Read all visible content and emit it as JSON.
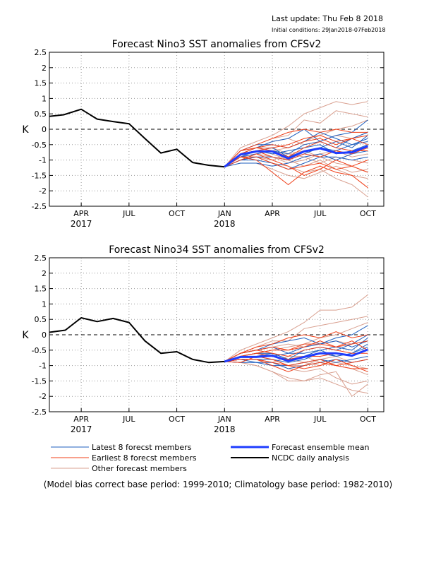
{
  "header": {
    "last_update": "Last update: Thu Feb 8 2018",
    "initial_conditions": "Initial conditions: 29Jan2018-07Feb2018"
  },
  "colors": {
    "latest": "#1f5fbf",
    "earliest": "#f0401a",
    "other": "#d9a090",
    "mean": "#1e3cff",
    "analysis": "#000000"
  },
  "chart_data": [
    {
      "type": "line",
      "title": "Forecast Nino3 SST anomalies from CFSv2",
      "ylabel": "K",
      "ylim": [
        -2.5,
        2.5
      ],
      "yticks": [
        "2.5",
        "2",
        "1.5",
        "1",
        "0.5",
        "0",
        "-0.5",
        "-1",
        "-1.5",
        "-2",
        "-2.5"
      ],
      "xlim": [
        0,
        21
      ],
      "xticks": [
        {
          "x": 2,
          "label": "APR",
          "year": "2017"
        },
        {
          "x": 5,
          "label": "JUL",
          "year": ""
        },
        {
          "x": 8,
          "label": "OCT",
          "year": ""
        },
        {
          "x": 11,
          "label": "JAN",
          "year": "2018"
        },
        {
          "x": 14,
          "label": "APR",
          "year": ""
        },
        {
          "x": 17,
          "label": "JUL",
          "year": ""
        },
        {
          "x": 20,
          "label": "OCT",
          "year": ""
        }
      ],
      "grid": true,
      "zero_line": true,
      "series": [
        {
          "role": "analysis",
          "x": [
            0,
            0.9,
            2,
            3,
            4,
            5,
            6,
            7,
            8,
            9,
            10,
            11
          ],
          "y": [
            0.42,
            0.47,
            0.65,
            0.33,
            0.25,
            0.18,
            -0.3,
            -0.77,
            -0.65,
            -1.08,
            -1.17,
            -1.22
          ]
        },
        {
          "role": "mean",
          "x": [
            11,
            12,
            13,
            14,
            15,
            16,
            17,
            18,
            19,
            20
          ],
          "y": [
            -1.22,
            -0.82,
            -0.72,
            -0.72,
            -0.95,
            -0.72,
            -0.62,
            -0.77,
            -0.75,
            -0.55
          ]
        }
      ],
      "ensemble": {
        "start": [
          11,
          -1.22
        ],
        "x": [
          12,
          13,
          14,
          15,
          16,
          17,
          18,
          19,
          20
        ],
        "latest": [
          [
            -0.8,
            -0.6,
            -0.4,
            -0.3,
            0.0,
            -0.4,
            -0.2,
            -0.1,
            0.3
          ],
          [
            -0.9,
            -0.8,
            -0.7,
            -0.8,
            -0.5,
            -0.4,
            -0.6,
            -0.3,
            -0.1
          ],
          [
            -1.0,
            -0.9,
            -0.9,
            -1.0,
            -0.8,
            -0.6,
            -0.7,
            -0.5,
            -0.3
          ],
          [
            -0.7,
            -0.5,
            -0.5,
            -0.6,
            -0.4,
            -0.1,
            -0.3,
            -0.5,
            -0.4
          ],
          [
            -1.1,
            -1.1,
            -1.2,
            -1.1,
            -0.9,
            -0.8,
            -1.0,
            -0.8,
            -0.7
          ],
          [
            -0.9,
            -0.7,
            -0.6,
            -0.9,
            -0.7,
            -0.6,
            -0.4,
            -0.6,
            -0.2
          ],
          [
            -1.0,
            -1.0,
            -1.1,
            -1.3,
            -1.1,
            -0.9,
            -0.9,
            -1.0,
            -0.9
          ],
          [
            -0.8,
            -0.7,
            -0.8,
            -0.7,
            -0.6,
            -0.5,
            -0.8,
            -0.7,
            -0.5
          ]
        ],
        "earliest": [
          [
            -0.7,
            -0.5,
            -0.3,
            -0.1,
            0.0,
            -0.1,
            0.0,
            -0.1,
            -0.1
          ],
          [
            -0.8,
            -0.7,
            -0.6,
            -0.5,
            -0.3,
            -0.2,
            -0.4,
            -0.3,
            -0.5
          ],
          [
            -0.9,
            -1.0,
            -1.4,
            -1.8,
            -1.4,
            -1.2,
            -1.4,
            -1.5,
            -1.9
          ],
          [
            -0.8,
            -0.6,
            -0.7,
            -0.9,
            -0.6,
            -0.4,
            -0.6,
            -0.7,
            -0.7
          ],
          [
            -1.0,
            -0.8,
            -1.0,
            -1.2,
            -1.5,
            -1.3,
            -1.0,
            -1.2,
            -1.4
          ],
          [
            -0.7,
            -0.6,
            -0.5,
            -0.6,
            -0.4,
            -0.3,
            -0.5,
            -0.3,
            -0.2
          ],
          [
            -0.9,
            -0.9,
            -1.1,
            -1.3,
            -1.2,
            -1.1,
            -1.3,
            -1.2,
            -1.0
          ],
          [
            -0.8,
            -0.7,
            -0.9,
            -1.0,
            -0.8,
            -0.9,
            -0.7,
            -0.8,
            -0.6
          ]
        ],
        "other": [
          [
            -0.6,
            -0.4,
            -0.2,
            0.1,
            0.5,
            0.7,
            0.9,
            0.8,
            0.9
          ],
          [
            -0.7,
            -0.5,
            -0.3,
            -0.2,
            0.3,
            0.2,
            0.6,
            0.5,
            0.4
          ],
          [
            -1.0,
            -0.9,
            -1.1,
            -1.2,
            -1.4,
            -1.3,
            -1.6,
            -1.8,
            -2.2
          ],
          [
            -0.8,
            -0.7,
            -0.8,
            -1.0,
            -1.2,
            -1.0,
            -1.3,
            -1.5,
            -1.6
          ],
          [
            -0.9,
            -0.8,
            -0.7,
            -0.6,
            -0.4,
            -0.2,
            0.0,
            0.1,
            0.3
          ],
          [
            -1.1,
            -1.1,
            -1.3,
            -1.5,
            -1.6,
            -1.4,
            -1.2,
            -1.4,
            -1.3
          ],
          [
            -0.8,
            -0.6,
            -0.6,
            -0.8,
            -0.9,
            -1.1,
            -0.9,
            -1.0,
            -1.1
          ],
          [
            -0.7,
            -0.6,
            -0.4,
            -0.3,
            -0.5,
            -0.4,
            -0.2,
            -0.3,
            -0.1
          ],
          [
            -0.9,
            -0.9,
            -1.0,
            -0.8,
            -0.7,
            -0.9,
            -1.1,
            -1.2,
            -1.4
          ],
          [
            -1.0,
            -0.8,
            -0.9,
            -1.1,
            -1.0,
            -0.8,
            -0.7,
            -0.9,
            -0.8
          ]
        ]
      }
    },
    {
      "type": "line",
      "title": "Forecast Nino34 SST anomalies from CFSv2",
      "ylabel": "K",
      "ylim": [
        -2.5,
        2.5
      ],
      "yticks": [
        "2.5",
        "2",
        "1.5",
        "1",
        "0.5",
        "0",
        "-0.5",
        "-1",
        "-1.5",
        "-2",
        "-2.5"
      ],
      "xlim": [
        0,
        21
      ],
      "xticks": [
        {
          "x": 2,
          "label": "APR",
          "year": "2017"
        },
        {
          "x": 5,
          "label": "JUL",
          "year": ""
        },
        {
          "x": 8,
          "label": "OCT",
          "year": ""
        },
        {
          "x": 11,
          "label": "JAN",
          "year": "2018"
        },
        {
          "x": 14,
          "label": "APR",
          "year": ""
        },
        {
          "x": 17,
          "label": "JUL",
          "year": ""
        },
        {
          "x": 20,
          "label": "OCT",
          "year": ""
        }
      ],
      "grid": true,
      "zero_line": true,
      "series": [
        {
          "role": "analysis",
          "x": [
            0,
            1,
            2,
            3,
            4,
            5,
            6,
            7,
            8,
            9,
            10,
            11
          ],
          "y": [
            0.08,
            0.15,
            0.55,
            0.43,
            0.53,
            0.4,
            -0.2,
            -0.6,
            -0.55,
            -0.8,
            -0.9,
            -0.87
          ]
        },
        {
          "role": "mean",
          "x": [
            11,
            12,
            13,
            14,
            15,
            16,
            17,
            18,
            19,
            20
          ],
          "y": [
            -0.87,
            -0.72,
            -0.72,
            -0.68,
            -0.85,
            -0.72,
            -0.6,
            -0.6,
            -0.68,
            -0.48
          ]
        }
      ],
      "ensemble": {
        "start": [
          11,
          -0.87
        ],
        "x": [
          12,
          13,
          14,
          15,
          16,
          17,
          18,
          19,
          20
        ],
        "latest": [
          [
            -0.6,
            -0.5,
            -0.3,
            -0.2,
            -0.1,
            -0.3,
            -0.1,
            0.0,
            0.3
          ],
          [
            -0.7,
            -0.7,
            -0.6,
            -0.8,
            -0.5,
            -0.4,
            -0.5,
            -0.3,
            0.0
          ],
          [
            -0.8,
            -0.8,
            -0.8,
            -0.9,
            -0.8,
            -0.6,
            -0.7,
            -0.6,
            -0.3
          ],
          [
            -0.6,
            -0.5,
            -0.4,
            -0.6,
            -0.4,
            -0.3,
            -0.2,
            -0.4,
            -0.2
          ],
          [
            -0.9,
            -0.9,
            -1.0,
            -1.0,
            -0.9,
            -0.8,
            -0.9,
            -0.8,
            -0.7
          ],
          [
            -0.7,
            -0.6,
            -0.6,
            -0.8,
            -0.7,
            -0.5,
            -0.4,
            -0.5,
            -0.1
          ],
          [
            -0.8,
            -0.9,
            -0.9,
            -1.1,
            -1.0,
            -0.9,
            -0.8,
            -0.9,
            -0.8
          ],
          [
            -0.7,
            -0.6,
            -0.7,
            -0.6,
            -0.6,
            -0.5,
            -0.7,
            -0.6,
            -0.4
          ]
        ],
        "earliest": [
          [
            -0.6,
            -0.4,
            -0.3,
            -0.1,
            0.0,
            -0.1,
            0.1,
            -0.1,
            0.0
          ],
          [
            -0.7,
            -0.6,
            -0.5,
            -0.5,
            -0.3,
            -0.3,
            -0.4,
            -0.2,
            -0.5
          ],
          [
            -0.8,
            -0.8,
            -1.0,
            -1.2,
            -1.0,
            -0.9,
            -1.0,
            -1.1,
            -1.1
          ],
          [
            -0.6,
            -0.5,
            -0.6,
            -0.7,
            -0.5,
            -0.4,
            -0.5,
            -0.6,
            -0.6
          ],
          [
            -0.9,
            -0.7,
            -0.8,
            -1.0,
            -1.1,
            -1.0,
            -0.8,
            -1.0,
            -1.2
          ],
          [
            -0.6,
            -0.5,
            -0.4,
            -0.5,
            -0.4,
            -0.2,
            -0.4,
            -0.3,
            -0.2
          ],
          [
            -0.8,
            -0.8,
            -0.9,
            -1.0,
            -0.9,
            -0.8,
            -1.0,
            -0.9,
            -0.8
          ],
          [
            -0.7,
            -0.6,
            -0.7,
            -0.8,
            -0.7,
            -0.7,
            -0.6,
            -0.7,
            -0.5
          ]
        ],
        "other": [
          [
            -0.5,
            -0.3,
            -0.1,
            0.1,
            0.4,
            0.8,
            0.8,
            0.9,
            1.3
          ],
          [
            -0.6,
            -0.4,
            -0.2,
            -0.2,
            0.2,
            0.3,
            0.4,
            0.5,
            0.6
          ],
          [
            -0.9,
            -1.0,
            -1.2,
            -1.4,
            -1.5,
            -1.4,
            -1.6,
            -1.8,
            -1.9
          ],
          [
            -0.8,
            -0.8,
            -0.9,
            -1.1,
            -1.2,
            -1.1,
            -1.4,
            -1.6,
            -1.5
          ],
          [
            -0.7,
            -0.6,
            -0.5,
            -0.4,
            -0.3,
            -0.1,
            0.0,
            0.2,
            0.4
          ],
          [
            -0.9,
            -1.0,
            -1.2,
            -1.5,
            -1.5,
            -1.3,
            -1.2,
            -2.0,
            -1.6
          ],
          [
            -0.7,
            -0.6,
            -0.6,
            -0.8,
            -0.9,
            -1.0,
            -0.9,
            -1.0,
            -1.1
          ],
          [
            -0.6,
            -0.5,
            -0.4,
            -0.3,
            -0.4,
            -0.3,
            -0.2,
            -0.3,
            0.0
          ],
          [
            -0.8,
            -0.8,
            -0.9,
            -0.7,
            -0.7,
            -0.9,
            -1.0,
            -1.1,
            -1.3
          ],
          [
            -0.9,
            -0.7,
            -0.8,
            -1.0,
            -1.0,
            -0.8,
            -0.7,
            -0.9,
            -0.8
          ]
        ]
      }
    }
  ],
  "legend": {
    "latest": "Latest 8 forecst members",
    "earliest": "Earliest 8 forecst members",
    "other": "Other forecast members",
    "mean": "Forecast ensemble mean",
    "analysis": "NCDC daily analysis"
  },
  "footnote": "(Model bias correct base period: 1999-2010; Climatology base period: 1982-2010)"
}
